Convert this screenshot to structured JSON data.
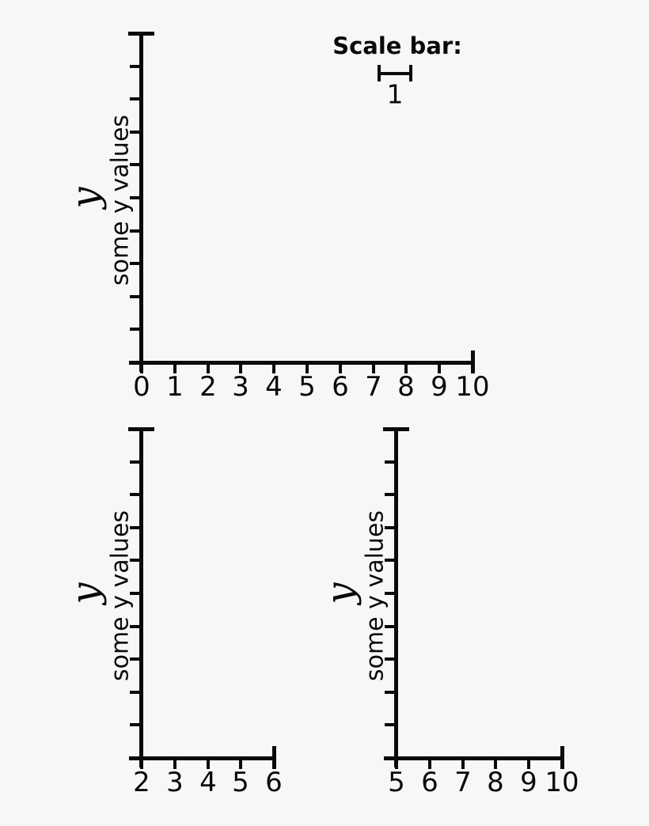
{
  "figure": {
    "background": "#f7f7f7",
    "ink_color": "#0a0a0a"
  },
  "scale_bar": {
    "title": "Scale bar:",
    "value_label": "1",
    "length_units": 1
  },
  "chart_data": [
    {
      "name": "top-axes",
      "type": "axes-only",
      "title": "",
      "xlabel": "",
      "ylabel": "y",
      "ylabel_inner": "some y values",
      "x_tick_labels": [
        "0",
        "1",
        "2",
        "3",
        "4",
        "5",
        "6",
        "7",
        "8",
        "9",
        "10"
      ],
      "xlim": [
        0,
        10
      ],
      "y_tick_count": 9,
      "y_tick_labels": [],
      "grid": false,
      "series": [],
      "annotations": [
        "Scale bar:",
        "1"
      ]
    },
    {
      "name": "bottom-left-axes",
      "type": "axes-only",
      "title": "",
      "xlabel": "",
      "ylabel": "y",
      "ylabel_inner": "some y values",
      "x_tick_labels": [
        "2",
        "3",
        "4",
        "5",
        "6"
      ],
      "xlim": [
        2,
        6
      ],
      "y_tick_count": 9,
      "y_tick_labels": [],
      "grid": false,
      "series": [],
      "annotations": []
    },
    {
      "name": "bottom-right-axes",
      "type": "axes-only",
      "title": "",
      "xlabel": "",
      "ylabel": "y",
      "ylabel_inner": "some y values",
      "x_tick_labels": [
        "5",
        "6",
        "7",
        "8",
        "9",
        "10"
      ],
      "xlim": [
        5,
        10
      ],
      "y_tick_count": 9,
      "y_tick_labels": [],
      "grid": false,
      "series": [],
      "annotations": []
    }
  ]
}
